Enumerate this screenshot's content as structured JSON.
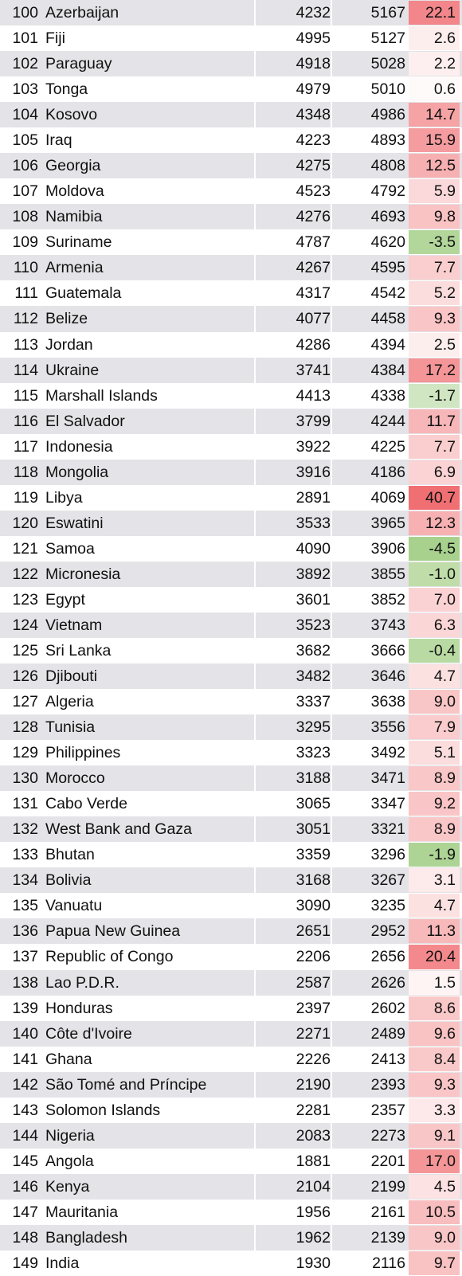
{
  "rows": [
    {
      "rank": "100",
      "country": "Azerbaijan",
      "v1": "4232",
      "v2": "5167",
      "change": "22.1",
      "color": "#f2868a"
    },
    {
      "rank": "101",
      "country": "Fiji",
      "v1": "4995",
      "v2": "5127",
      "change": "2.6",
      "color": "#fdeeee"
    },
    {
      "rank": "102",
      "country": "Paraguay",
      "v1": "4918",
      "v2": "5028",
      "change": "2.2",
      "color": "#fdefef"
    },
    {
      "rank": "103",
      "country": "Tonga",
      "v1": "4979",
      "v2": "5010",
      "change": "0.6",
      "color": "#fefafa"
    },
    {
      "rank": "104",
      "country": "Kosovo",
      "v1": "4348",
      "v2": "4986",
      "change": "14.7",
      "color": "#f5a3a5"
    },
    {
      "rank": "105",
      "country": "Iraq",
      "v1": "4223",
      "v2": "4893",
      "change": "15.9",
      "color": "#f49c9f"
    },
    {
      "rank": "106",
      "country": "Georgia",
      "v1": "4275",
      "v2": "4808",
      "change": "12.5",
      "color": "#f7b0b2"
    },
    {
      "rank": "107",
      "country": "Moldova",
      "v1": "4523",
      "v2": "4792",
      "change": "5.9",
      "color": "#fbd9da"
    },
    {
      "rank": "108",
      "country": "Namibia",
      "v1": "4276",
      "v2": "4693",
      "change": "9.8",
      "color": "#f9c2c3"
    },
    {
      "rank": "109",
      "country": "Suriname",
      "v1": "4787",
      "v2": "4620",
      "change": "-3.5",
      "color": "#b3d69b"
    },
    {
      "rank": "110",
      "country": "Armenia",
      "v1": "4267",
      "v2": "4595",
      "change": "7.7",
      "color": "#facecf"
    },
    {
      "rank": "111",
      "country": "Guatemala",
      "v1": "4317",
      "v2": "4542",
      "change": "5.2",
      "color": "#fcdddd"
    },
    {
      "rank": "112",
      "country": "Belize",
      "v1": "4077",
      "v2": "4458",
      "change": "9.3",
      "color": "#f9c5c6"
    },
    {
      "rank": "113",
      "country": "Jordan",
      "v1": "4286",
      "v2": "4394",
      "change": "2.5",
      "color": "#fdeeee"
    },
    {
      "rank": "114",
      "country": "Ukraine",
      "v1": "3741",
      "v2": "4384",
      "change": "17.2",
      "color": "#f49597"
    },
    {
      "rank": "115",
      "country": "Marshall Islands",
      "v1": "4413",
      "v2": "4338",
      "change": "-1.7",
      "color": "#d0e6c2"
    },
    {
      "rank": "116",
      "country": "El Salvador",
      "v1": "3799",
      "v2": "4244",
      "change": "11.7",
      "color": "#f7b6b8"
    },
    {
      "rank": "117",
      "country": "Indonesia",
      "v1": "3922",
      "v2": "4225",
      "change": "7.7",
      "color": "#facecf"
    },
    {
      "rank": "118",
      "country": "Mongolia",
      "v1": "3916",
      "v2": "4186",
      "change": "6.9",
      "color": "#fbd3d4"
    },
    {
      "rank": "119",
      "country": "Libya",
      "v1": "2891",
      "v2": "4069",
      "change": "40.7",
      "color": "#f06f73"
    },
    {
      "rank": "120",
      "country": "Eswatini",
      "v1": "3533",
      "v2": "3965",
      "change": "12.3",
      "color": "#f7b1b3"
    },
    {
      "rank": "121",
      "country": "Samoa",
      "v1": "4090",
      "v2": "3906",
      "change": "-4.5",
      "color": "#a8d18e"
    },
    {
      "rank": "122",
      "country": "Micronesia",
      "v1": "3892",
      "v2": "3855",
      "change": "-1.0",
      "color": "#c0dda9"
    },
    {
      "rank": "123",
      "country": "Egypt",
      "v1": "3601",
      "v2": "3852",
      "change": "7.0",
      "color": "#fad2d3"
    },
    {
      "rank": "124",
      "country": "Vietnam",
      "v1": "3523",
      "v2": "3743",
      "change": "6.3",
      "color": "#fbd6d7"
    },
    {
      "rank": "125",
      "country": "Sri Lanka",
      "v1": "3682",
      "v2": "3666",
      "change": "-0.4",
      "color": "#b9daa2"
    },
    {
      "rank": "126",
      "country": "Djibouti",
      "v1": "3482",
      "v2": "3646",
      "change": "4.7",
      "color": "#fce1e1"
    },
    {
      "rank": "127",
      "country": "Algeria",
      "v1": "3337",
      "v2": "3638",
      "change": "9.0",
      "color": "#f9c6c7"
    },
    {
      "rank": "128",
      "country": "Tunisia",
      "v1": "3295",
      "v2": "3556",
      "change": "7.9",
      "color": "#faccce"
    },
    {
      "rank": "129",
      "country": "Philippines",
      "v1": "3323",
      "v2": "3492",
      "change": "5.1",
      "color": "#fcdddd"
    },
    {
      "rank": "130",
      "country": "Morocco",
      "v1": "3188",
      "v2": "3471",
      "change": "8.9",
      "color": "#f9c7c8"
    },
    {
      "rank": "131",
      "country": "Cabo Verde",
      "v1": "3065",
      "v2": "3347",
      "change": "9.2",
      "color": "#f9c5c6"
    },
    {
      "rank": "132",
      "country": "West Bank and Gaza",
      "v1": "3051",
      "v2": "3321",
      "change": "8.9",
      "color": "#f9c7c8"
    },
    {
      "rank": "133",
      "country": "Bhutan",
      "v1": "3359",
      "v2": "3296",
      "change": "-1.9",
      "color": "#add395"
    },
    {
      "rank": "134",
      "country": "Bolivia",
      "v1": "3168",
      "v2": "3267",
      "change": "3.1",
      "color": "#fdeaea"
    },
    {
      "rank": "135",
      "country": "Vanuatu",
      "v1": "3090",
      "v2": "3235",
      "change": "4.7",
      "color": "#fce1e1"
    },
    {
      "rank": "136",
      "country": "Papua New Guinea",
      "v1": "2651",
      "v2": "2952",
      "change": "11.3",
      "color": "#f8b9ba"
    },
    {
      "rank": "137",
      "country": "Republic of Congo",
      "v1": "2206",
      "v2": "2656",
      "change": "20.4",
      "color": "#f3898c"
    },
    {
      "rank": "138",
      "country": "Lao P.D.R.",
      "v1": "2587",
      "v2": "2626",
      "change": "1.5",
      "color": "#fef4f4"
    },
    {
      "rank": "139",
      "country": "Honduras",
      "v1": "2397",
      "v2": "2602",
      "change": "8.6",
      "color": "#f9c8c9"
    },
    {
      "rank": "140",
      "country": "Côte d'Ivoire",
      "v1": "2271",
      "v2": "2489",
      "change": "9.6",
      "color": "#f9c3c4"
    },
    {
      "rank": "141",
      "country": "Ghana",
      "v1": "2226",
      "v2": "2413",
      "change": "8.4",
      "color": "#f9c9ca"
    },
    {
      "rank": "142",
      "country": "São Tomé and Príncipe",
      "v1": "2190",
      "v2": "2393",
      "change": "9.3",
      "color": "#f9c5c6"
    },
    {
      "rank": "143",
      "country": "Solomon Islands",
      "v1": "2281",
      "v2": "2357",
      "change": "3.3",
      "color": "#fde9e9"
    },
    {
      "rank": "144",
      "country": "Nigeria",
      "v1": "2083",
      "v2": "2273",
      "change": "9.1",
      "color": "#f9c6c7"
    },
    {
      "rank": "145",
      "country": "Angola",
      "v1": "1881",
      "v2": "2201",
      "change": "17.0",
      "color": "#f49698"
    },
    {
      "rank": "146",
      "country": "Kenya",
      "v1": "2104",
      "v2": "2199",
      "change": "4.5",
      "color": "#fce2e2"
    },
    {
      "rank": "147",
      "country": "Mauritania",
      "v1": "1956",
      "v2": "2161",
      "change": "10.5",
      "color": "#f8bdbf"
    },
    {
      "rank": "148",
      "country": "Bangladesh",
      "v1": "1962",
      "v2": "2139",
      "change": "9.0",
      "color": "#f9c6c7"
    },
    {
      "rank": "149",
      "country": "India",
      "v1": "1930",
      "v2": "2116",
      "change": "9.7",
      "color": "#f9c2c3"
    }
  ]
}
